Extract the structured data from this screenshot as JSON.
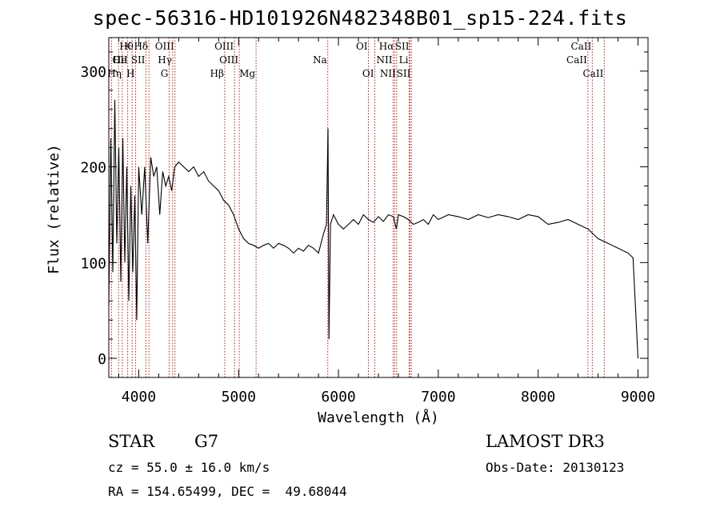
{
  "chart_data": {
    "type": "line",
    "title": "spec-56316-HD101926N482348B01_sp15-224.fits",
    "xlabel": "Wavelength (Å)",
    "ylabel": "Flux (relative)",
    "xlim": [
      3700,
      9100
    ],
    "ylim": [
      -20,
      335
    ],
    "xticks": [
      4000,
      5000,
      6000,
      7000,
      8000,
      9000
    ],
    "yticks": [
      0,
      100,
      200,
      300
    ],
    "grid": false,
    "line_color": "#000000",
    "marker_color": "#b22222",
    "series": [
      {
        "x": [
          3700,
          3720,
          3740,
          3760,
          3780,
          3800,
          3820,
          3840,
          3860,
          3880,
          3900,
          3920,
          3940,
          3960,
          3980,
          4000,
          4030,
          4060,
          4090,
          4120,
          4150,
          4180,
          4210,
          4240,
          4270,
          4300,
          4330,
          4360,
          4400,
          4450,
          4500,
          4550,
          4600,
          4650,
          4700,
          4750,
          4800,
          4850,
          4900,
          4950,
          5000,
          5050,
          5100,
          5150,
          5200,
          5250,
          5300,
          5350,
          5400,
          5450,
          5500,
          5550,
          5600,
          5650,
          5700,
          5750,
          5800,
          5850,
          5880,
          5895,
          5905,
          5920,
          5950,
          6000,
          6050,
          6100,
          6150,
          6200,
          6250,
          6300,
          6350,
          6400,
          6450,
          6500,
          6550,
          6580,
          6600,
          6650,
          6700,
          6750,
          6800,
          6850,
          6900,
          6950,
          7000,
          7100,
          7200,
          7300,
          7400,
          7500,
          7600,
          7700,
          7800,
          7900,
          8000,
          8100,
          8200,
          8300,
          8400,
          8500,
          8600,
          8700,
          8800,
          8900,
          8950,
          9000
        ],
        "y": [
          55,
          230,
          90,
          270,
          120,
          220,
          80,
          230,
          100,
          200,
          60,
          180,
          90,
          170,
          40,
          200,
          150,
          200,
          120,
          210,
          190,
          200,
          150,
          195,
          180,
          190,
          175,
          200,
          205,
          200,
          195,
          200,
          190,
          195,
          185,
          180,
          175,
          165,
          160,
          150,
          135,
          125,
          120,
          118,
          115,
          118,
          120,
          115,
          120,
          118,
          115,
          110,
          115,
          112,
          118,
          115,
          110,
          130,
          140,
          240,
          20,
          140,
          150,
          140,
          135,
          140,
          145,
          140,
          150,
          145,
          142,
          148,
          143,
          150,
          148,
          135,
          150,
          148,
          145,
          140,
          142,
          145,
          140,
          150,
          145,
          150,
          148,
          145,
          150,
          147,
          150,
          148,
          145,
          150,
          148,
          140,
          142,
          145,
          140,
          135,
          125,
          120,
          115,
          110,
          105,
          0
        ]
      }
    ],
    "line_markers": [
      {
        "label": "Hθ",
        "x": 3798,
        "row": 0,
        "side": "right"
      },
      {
        "label": "OII",
        "x": 3727,
        "row": 1,
        "side": "right"
      },
      {
        "label": "Hη",
        "x": 3835,
        "row": 2,
        "side": "left"
      },
      {
        "label": "He",
        "x": 3889,
        "row": 1,
        "side": "left"
      },
      {
        "label": "K",
        "x": 3934,
        "row": 0,
        "side": "left"
      },
      {
        "label": "SII",
        "x": 4072,
        "row": 1,
        "side": "left"
      },
      {
        "label": "H",
        "x": 3968,
        "row": 2,
        "side": "left"
      },
      {
        "label": "Hδ",
        "x": 4102,
        "row": 0,
        "side": "left"
      },
      {
        "label": "OIII",
        "x": 4363,
        "row": 0,
        "side": "left"
      },
      {
        "label": "Hγ",
        "x": 4340,
        "row": 1,
        "side": "left"
      },
      {
        "label": "G",
        "x": 4304,
        "row": 2,
        "side": "left"
      },
      {
        "label": "Hβ",
        "x": 4861,
        "row": 2,
        "side": "left"
      },
      {
        "label": "OIII",
        "x": 4959,
        "row": 0,
        "side": "left"
      },
      {
        "label": "OIII",
        "x": 5007,
        "row": 1,
        "side": "left"
      },
      {
        "label": "Mg",
        "x": 5175,
        "row": 2,
        "side": "left"
      },
      {
        "label": "Na",
        "x": 5893,
        "row": 1,
        "side": "left"
      },
      {
        "label": "OI",
        "x": 6300,
        "row": 0,
        "side": "left"
      },
      {
        "label": "OI",
        "x": 6364,
        "row": 2,
        "side": "left"
      },
      {
        "label": "Hα",
        "x": 6563,
        "row": 0,
        "side": "left"
      },
      {
        "label": "NII",
        "x": 6548,
        "row": 1,
        "side": "left"
      },
      {
        "label": "NII",
        "x": 6583,
        "row": 2,
        "side": "left"
      },
      {
        "label": "SII",
        "x": 6716,
        "row": 0,
        "side": "left"
      },
      {
        "label": "Li",
        "x": 6708,
        "row": 1,
        "side": "left"
      },
      {
        "label": "SII",
        "x": 6731,
        "row": 2,
        "side": "left"
      },
      {
        "label": "CaII",
        "x": 8542,
        "row": 0,
        "side": "left"
      },
      {
        "label": "CaII",
        "x": 8498,
        "row": 1,
        "side": "left"
      },
      {
        "label": "CaII",
        "x": 8662,
        "row": 2,
        "side": "left"
      }
    ]
  },
  "info": {
    "class": "STAR",
    "subclass": "G7",
    "survey": "LAMOST DR3",
    "cz": "cz = 55.0 ± 16.0 km/s",
    "obs_date": "Obs-Date: 20130123",
    "radec": "RA = 154.65499, DEC =  49.68044"
  }
}
